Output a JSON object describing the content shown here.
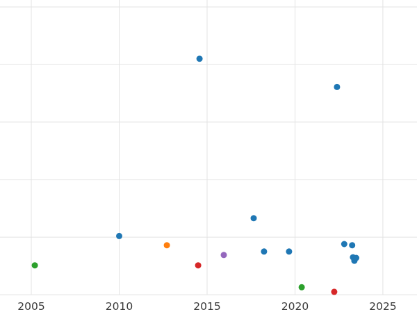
{
  "figure": {
    "background_color": "#ffffff",
    "gridline_color": "#e3e3e3",
    "tick_label_color": "#3a3a3a"
  },
  "chart_data": {
    "type": "scatter",
    "title": "",
    "xlabel": "",
    "ylabel": "",
    "grid": true,
    "legend": "none",
    "xlim": [
      2003.22,
      2026.94
    ],
    "ylim": [
      -0.3,
      5.12
    ],
    "x_ticks": [
      2005,
      2010,
      2015,
      2020,
      2025
    ],
    "x_tick_labels": [
      "2005",
      "2010",
      "2015",
      "2020",
      "2025"
    ],
    "y_gridline_values": [
      0,
      1,
      2,
      3,
      4,
      5
    ],
    "y_tick_labels": [],
    "marker_radius": 4.5,
    "series": [
      {
        "name": "blue",
        "color": "#1f77b4",
        "points": [
          [
            2010.0,
            1.02
          ],
          [
            2014.57,
            4.1
          ],
          [
            2017.65,
            1.33
          ],
          [
            2018.24,
            0.75
          ],
          [
            2019.66,
            0.75
          ],
          [
            2022.39,
            3.61
          ],
          [
            2022.8,
            0.88
          ],
          [
            2023.25,
            0.86
          ],
          [
            2023.3,
            0.65
          ],
          [
            2023.38,
            0.59
          ],
          [
            2023.48,
            0.64
          ]
        ]
      },
      {
        "name": "orange",
        "color": "#ff7f0e",
        "points": [
          [
            2012.71,
            0.86
          ]
        ]
      },
      {
        "name": "green",
        "color": "#2ca02c",
        "points": [
          [
            2005.2,
            0.51
          ],
          [
            2020.38,
            0.13
          ]
        ]
      },
      {
        "name": "red",
        "color": "#d62728",
        "points": [
          [
            2014.49,
            0.51
          ],
          [
            2022.23,
            0.05
          ]
        ]
      },
      {
        "name": "purple",
        "color": "#9467bd",
        "points": [
          [
            2015.95,
            0.69
          ]
        ]
      }
    ]
  }
}
